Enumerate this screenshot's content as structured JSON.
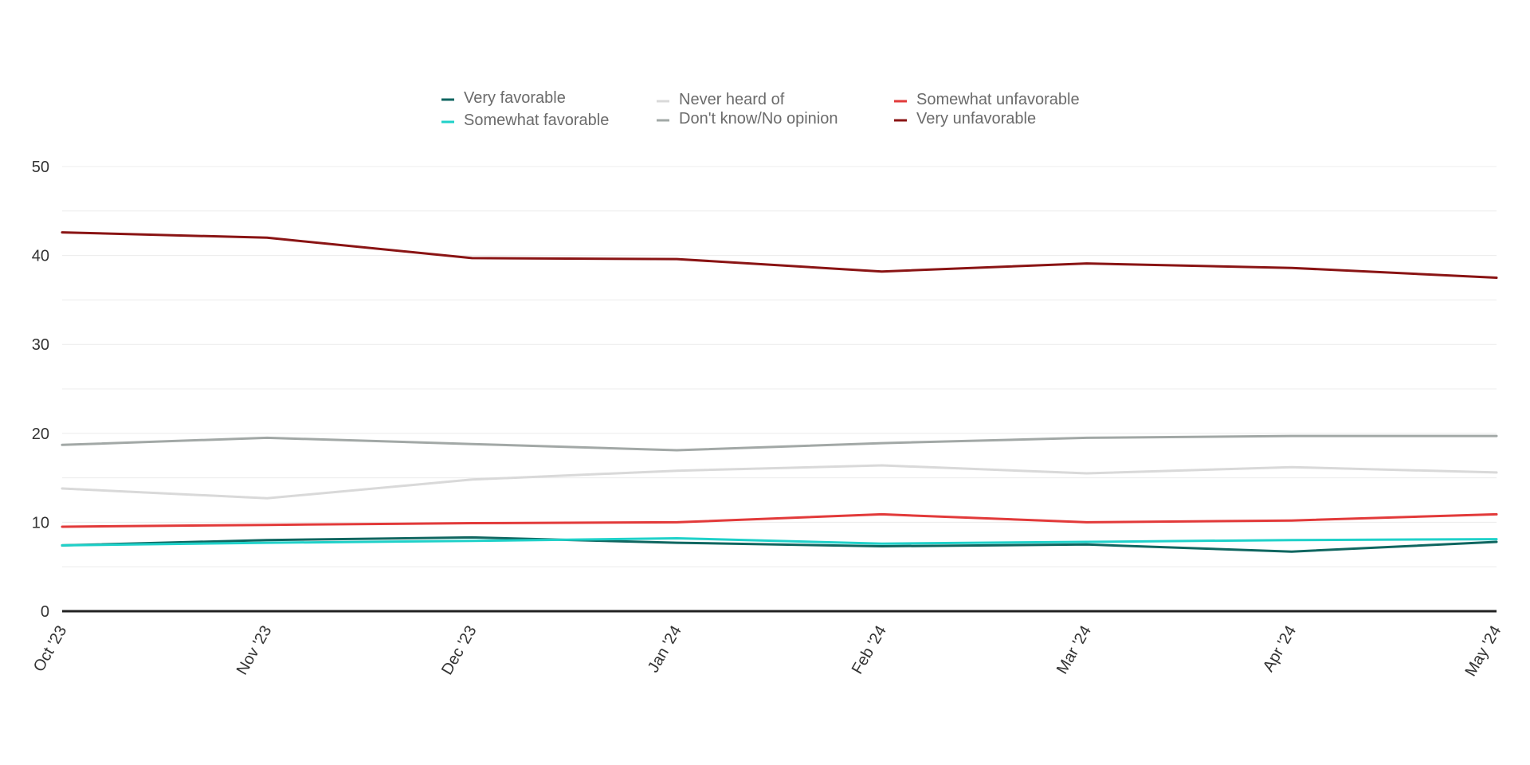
{
  "chart_data": {
    "type": "line",
    "title": "",
    "xlabel": "",
    "ylabel": "",
    "ylim": [
      0,
      50
    ],
    "yticks": [
      0,
      10,
      20,
      30,
      40,
      50
    ],
    "grid": true,
    "legend_position": "top-center",
    "categories": [
      "Oct '23",
      "Nov '23",
      "Dec '23",
      "Jan '24",
      "Feb '24",
      "Mar '24",
      "Apr '24",
      "May '24"
    ],
    "series": [
      {
        "name": "Very favorable",
        "color": "#0f6660",
        "values": [
          7.4,
          8.0,
          8.3,
          7.7,
          7.3,
          7.5,
          6.7,
          7.8
        ]
      },
      {
        "name": "Somewhat favorable",
        "color": "#1fd1c9",
        "values": [
          7.4,
          7.7,
          7.9,
          8.2,
          7.6,
          7.8,
          8.0,
          8.1
        ]
      },
      {
        "name": "Never heard of",
        "color": "#d9d9d9",
        "values": [
          13.8,
          12.7,
          14.8,
          15.8,
          16.4,
          15.5,
          16.2,
          15.6
        ]
      },
      {
        "name": "Don't know/No opinion",
        "color": "#a2a8a6",
        "values": [
          18.7,
          19.5,
          18.8,
          18.1,
          18.9,
          19.5,
          19.7,
          19.7
        ]
      },
      {
        "name": "Somewhat unfavorable",
        "color": "#e23a3a",
        "values": [
          9.5,
          9.7,
          9.9,
          10.0,
          10.9,
          10.0,
          10.2,
          10.9
        ]
      },
      {
        "name": "Very unfavorable",
        "color": "#8a1414",
        "values": [
          42.6,
          42.0,
          39.7,
          39.6,
          38.2,
          39.1,
          38.6,
          37.5
        ]
      }
    ]
  }
}
